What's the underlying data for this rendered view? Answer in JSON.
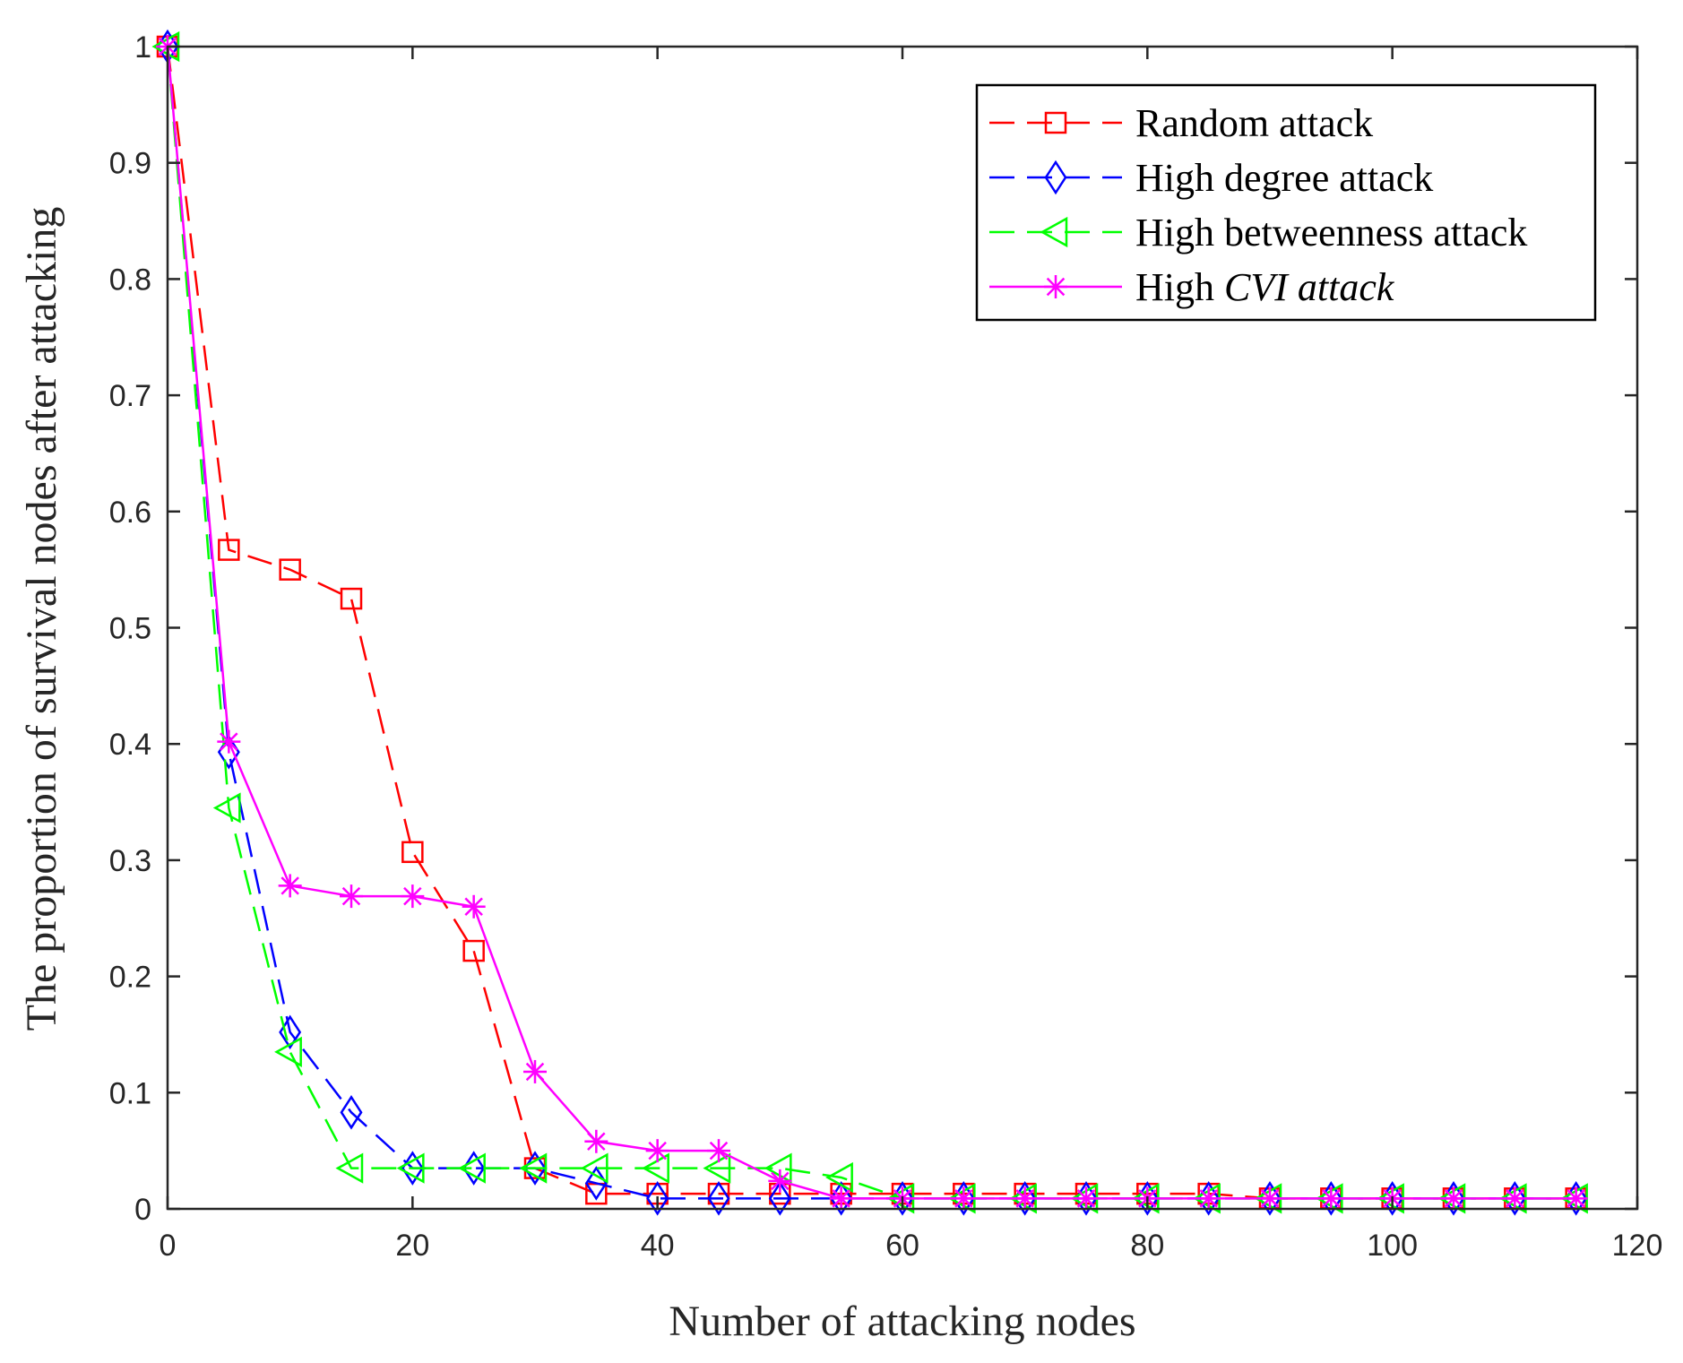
{
  "chart_data": {
    "type": "line",
    "title": "",
    "xlabel": "Number of attacking nodes",
    "ylabel": "The proportion of survival nodes after attacking",
    "xlim": [
      0,
      120
    ],
    "ylim": [
      0,
      1
    ],
    "xticks": [
      0,
      20,
      40,
      60,
      80,
      100,
      120
    ],
    "yticks": [
      0,
      0.1,
      0.2,
      0.3,
      0.4,
      0.5,
      0.6,
      0.7,
      0.8,
      0.9,
      1
    ],
    "xtick_labels": [
      "0",
      "20",
      "40",
      "60",
      "80",
      "100",
      "120"
    ],
    "ytick_labels": [
      "0",
      "0.1",
      "0.2",
      "0.3",
      "0.4",
      "0.5",
      "0.6",
      "0.7",
      "0.8",
      "0.9",
      "1"
    ],
    "grid": false,
    "legend_position": "top-right",
    "x": [
      0,
      5,
      10,
      15,
      20,
      25,
      30,
      35,
      40,
      45,
      50,
      55,
      60,
      65,
      70,
      75,
      80,
      85,
      90,
      95,
      100,
      105,
      110,
      115
    ],
    "series": [
      {
        "name": "Random attack",
        "color": "#ff0000",
        "line_style": "dashed",
        "marker": "square",
        "values": [
          1,
          0.567,
          0.55,
          0.525,
          0.307,
          0.222,
          0.035,
          0.013,
          0.013,
          0.013,
          0.013,
          0.013,
          0.013,
          0.013,
          0.013,
          0.013,
          0.013,
          0.013,
          0.009,
          0.009,
          0.009,
          0.009,
          0.009,
          0.009
        ]
      },
      {
        "name": "High degree attack",
        "color": "#0000ff",
        "line_style": "dashed",
        "marker": "diamond",
        "values": [
          1,
          0.393,
          0.152,
          0.083,
          0.035,
          0.035,
          0.035,
          0.022,
          0.009,
          0.009,
          0.009,
          0.009,
          0.009,
          0.009,
          0.009,
          0.009,
          0.009,
          0.009,
          0.009,
          0.009,
          0.009,
          0.009,
          0.009,
          0.009
        ]
      },
      {
        "name": "High betweenness attack",
        "color": "#00ff00",
        "line_style": "dashed",
        "marker": "triangle-left",
        "values": [
          1,
          0.345,
          0.135,
          0.035,
          0.035,
          0.035,
          0.035,
          0.035,
          0.035,
          0.035,
          0.035,
          0.027,
          0.009,
          0.009,
          0.009,
          0.009,
          0.009,
          0.009,
          0.009,
          0.009,
          0.009,
          0.009,
          0.009,
          0.009
        ]
      },
      {
        "name": "High ",
        "name_italic": "CVI attack",
        "color": "#ff00ff",
        "line_style": "solid",
        "marker": "asterisk",
        "values": [
          1,
          0.402,
          0.278,
          0.269,
          0.269,
          0.26,
          0.118,
          0.058,
          0.05,
          0.05,
          0.024,
          0.009,
          0.009,
          0.009,
          0.009,
          0.009,
          0.009,
          0.009,
          0.009,
          0.009,
          0.009,
          0.009,
          0.009,
          0.009
        ]
      }
    ]
  }
}
